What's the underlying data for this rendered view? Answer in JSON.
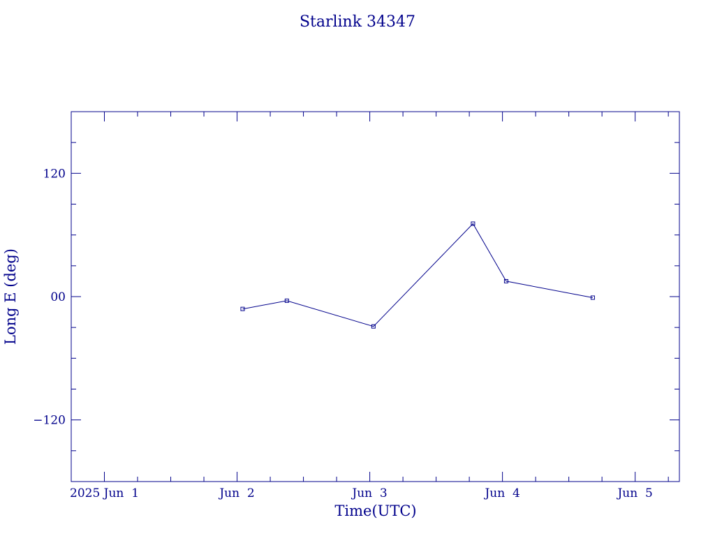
{
  "colors": {
    "ink": "#00008b",
    "background": "#ffffff"
  },
  "chart_data": {
    "type": "line",
    "title": "Starlink 34347",
    "xlabel": "Time(UTC)",
    "ylabel": "Long E (deg)",
    "grid": false,
    "x_tick_labels": [
      "2025 Jun  1",
      "Jun  2",
      "Jun  3",
      "Jun  4",
      "Jun  5"
    ],
    "x_tick_dates": [
      "2025-06-01",
      "2025-06-02",
      "2025-06-03",
      "2025-06-04",
      "2025-06-05"
    ],
    "xlim": [
      "2025-05-31T18:00",
      "2025-06-05T08:00"
    ],
    "y_tick_labels": [
      "120",
      "00",
      "−120"
    ],
    "y_tick_values": [
      120,
      0,
      -120
    ],
    "y_minor_step": 30,
    "ylim": [
      -180,
      180
    ],
    "marker": "square",
    "series": [
      {
        "x": [
          "2025-06-02T01:00",
          "2025-06-02T09:00",
          "2025-06-03T00:40",
          "2025-06-03T18:40",
          "2025-06-04T00:40",
          "2025-06-04T16:20"
        ],
        "y": [
          -12,
          -4,
          -29,
          71,
          15,
          -1
        ]
      }
    ]
  }
}
